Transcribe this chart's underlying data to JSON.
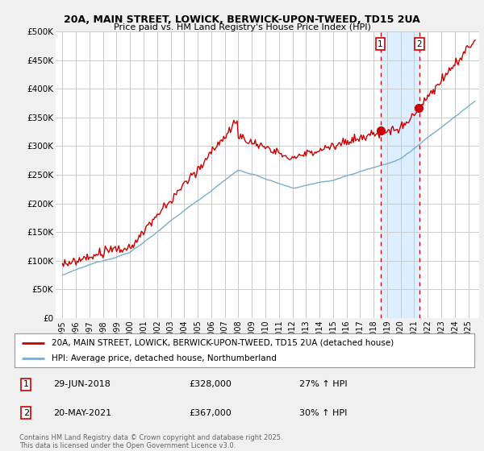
{
  "title1": "20A, MAIN STREET, LOWICK, BERWICK-UPON-TWEED, TD15 2UA",
  "title2": "Price paid vs. HM Land Registry's House Price Index (HPI)",
  "ylabel_ticks": [
    "£0",
    "£50K",
    "£100K",
    "£150K",
    "£200K",
    "£250K",
    "£300K",
    "£350K",
    "£400K",
    "£450K",
    "£500K"
  ],
  "ytick_values": [
    0,
    50000,
    100000,
    150000,
    200000,
    250000,
    300000,
    350000,
    400000,
    450000,
    500000
  ],
  "ylim": [
    0,
    500000
  ],
  "xlim_start": 1994.5,
  "xlim_end": 2025.8,
  "marker1_x": 2018.5,
  "marker1_y": 328000,
  "marker2_x": 2021.37,
  "marker2_y": 367000,
  "line1_color": "#cc0000",
  "line2_color": "#7aadcf",
  "shade_color": "#ddeeff",
  "marker1_date": "29-JUN-2018",
  "marker1_price": "£328,000",
  "marker1_hpi": "27% ↑ HPI",
  "marker2_date": "20-MAY-2021",
  "marker2_price": "£367,000",
  "marker2_hpi": "30% ↑ HPI",
  "legend1": "20A, MAIN STREET, LOWICK, BERWICK-UPON-TWEED, TD15 2UA (detached house)",
  "legend2": "HPI: Average price, detached house, Northumberland",
  "footer": "Contains HM Land Registry data © Crown copyright and database right 2025.\nThis data is licensed under the Open Government Licence v3.0.",
  "bg_color": "#f0f0f0",
  "plot_bg": "#ffffff",
  "grid_color": "#cccccc"
}
